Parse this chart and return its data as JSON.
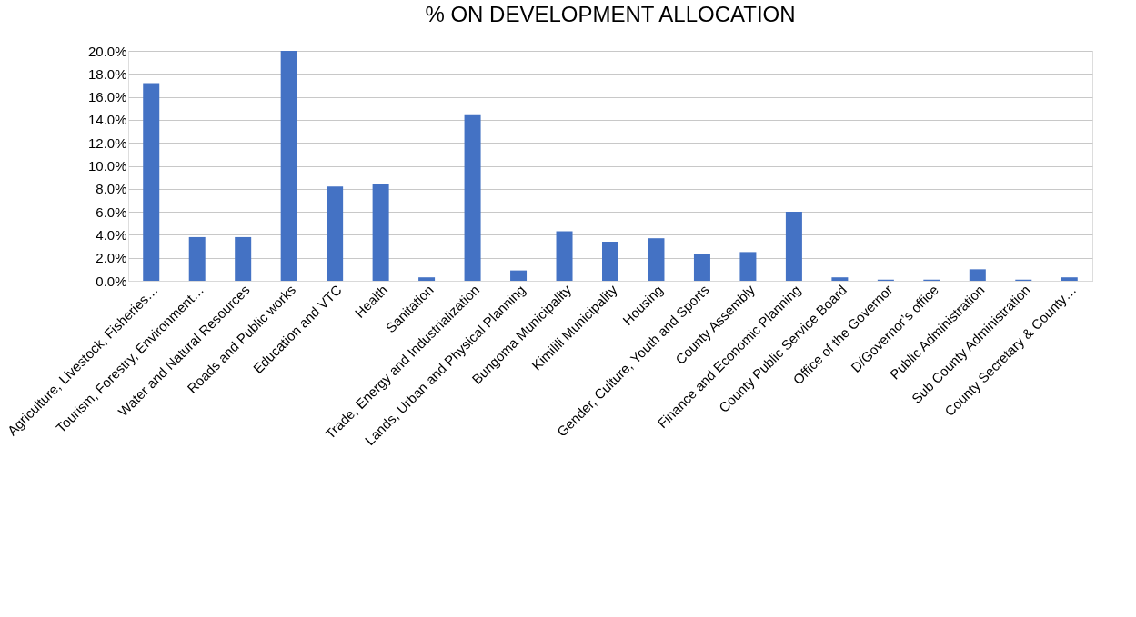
{
  "chart_data": {
    "type": "bar",
    "title": "% ON DEVELOPMENT ALLOCATION",
    "categories": [
      "Agriculture, Livestock, Fisheries…",
      "Tourism, Forestry, Environment…",
      "Water and Natural Resources",
      "Roads and Public works",
      "Education and VTC",
      "Health",
      "Sanitation",
      "Trade, Energy and Industrialization",
      "Lands, Urban and Physical Planning",
      "Bungoma Municipality",
      "Kimilili Municipality",
      "Housing",
      "Gender, Culture, Youth and Sports",
      "County Assembly",
      "Finance and Economic Planning",
      "County Public Service Board",
      "Office of the Governor",
      "D/Governor’s office",
      "Public Administration",
      "Sub County Administration",
      "County Secretary & County…"
    ],
    "values": [
      17.2,
      3.8,
      3.8,
      20.0,
      8.2,
      8.4,
      0.3,
      14.4,
      0.9,
      4.3,
      3.4,
      3.7,
      2.3,
      2.5,
      6.0,
      0.3,
      0.1,
      0.1,
      1.0,
      0.1,
      0.3
    ],
    "color": "#4472c4",
    "ylim": [
      0,
      20
    ],
    "yticks": [
      {
        "value": 0,
        "label": "0.0%"
      },
      {
        "value": 2,
        "label": "2.0%"
      },
      {
        "value": 4,
        "label": "4.0%"
      },
      {
        "value": 6,
        "label": "6.0%"
      },
      {
        "value": 8,
        "label": "8.0%"
      },
      {
        "value": 10,
        "label": "10.0%"
      },
      {
        "value": 12,
        "label": "12.0%"
      },
      {
        "value": 14,
        "label": "14.0%"
      },
      {
        "value": 16,
        "label": "16.0%"
      },
      {
        "value": 18,
        "label": "18.0%"
      },
      {
        "value": 20,
        "label": "20.0%"
      }
    ],
    "grid": "y"
  }
}
